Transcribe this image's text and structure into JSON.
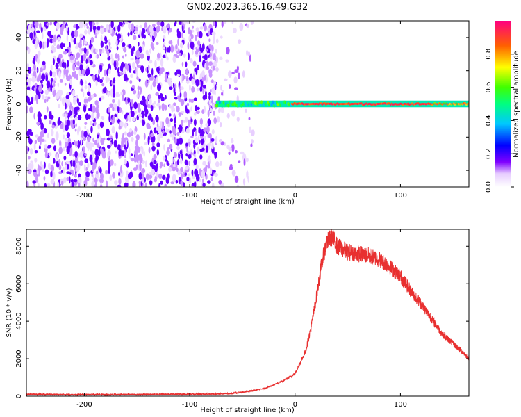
{
  "title": "GN02.2023.365.16.49.G32",
  "chart_data": [
    {
      "type": "heatmap",
      "title": "GN02.2023.365.16.49.G32",
      "xlabel": "Height of straight line (km)",
      "ylabel": "Frequency (Hz)",
      "xlim": [
        -255,
        165
      ],
      "ylim": [
        -50,
        50
      ],
      "xticks": [
        -200,
        -100,
        0,
        100
      ],
      "yticks": [
        -40,
        -20,
        0,
        20,
        40
      ],
      "colorbar": {
        "label": "Normalized spectral amplitude",
        "range": [
          0,
          1
        ],
        "ticks": [
          "0.0",
          "0.2",
          "0.4",
          "0.6",
          "0.8"
        ]
      },
      "regions": [
        {
          "description_x_range": [
            -255,
            -75
          ],
          "frequency_range": [
            -50,
            50
          ],
          "amplitude": [
            0.05,
            0.15
          ]
        },
        {
          "description_x_range": [
            -75,
            -40
          ],
          "frequency_range": [
            -50,
            50
          ],
          "amplitude": [
            0.05,
            0.1
          ]
        },
        {
          "description_x_range": [
            -75,
            165
          ],
          "frequency_range": [
            -2,
            2
          ],
          "amplitude": [
            0.3,
            1.0
          ]
        }
      ],
      "grid": false
    },
    {
      "type": "line",
      "xlabel": "Height of straight line (km)",
      "ylabel": "SNR (10 * v/v)",
      "xlim": [
        -255,
        165
      ],
      "ylim": [
        0,
        8900
      ],
      "xticks": [
        -200,
        -100,
        0,
        100
      ],
      "yticks": [
        0,
        2000,
        4000,
        6000,
        8000
      ],
      "color": "#e83030",
      "x": [
        -255,
        -200,
        -150,
        -100,
        -75,
        -60,
        -50,
        -40,
        -30,
        -20,
        -10,
        0,
        10,
        15,
        20,
        25,
        30,
        35,
        40,
        50,
        60,
        70,
        80,
        90,
        100,
        110,
        120,
        130,
        140,
        150,
        160,
        165
      ],
      "y": [
        100,
        80,
        90,
        110,
        120,
        150,
        200,
        300,
        400,
        600,
        850,
        1200,
        2400,
        3600,
        5200,
        7000,
        8200,
        8500,
        8000,
        7700,
        7600,
        7500,
        7300,
        6900,
        6400,
        5600,
        4900,
        4100,
        3300,
        2800,
        2300,
        2000
      ],
      "grid": false
    }
  ]
}
